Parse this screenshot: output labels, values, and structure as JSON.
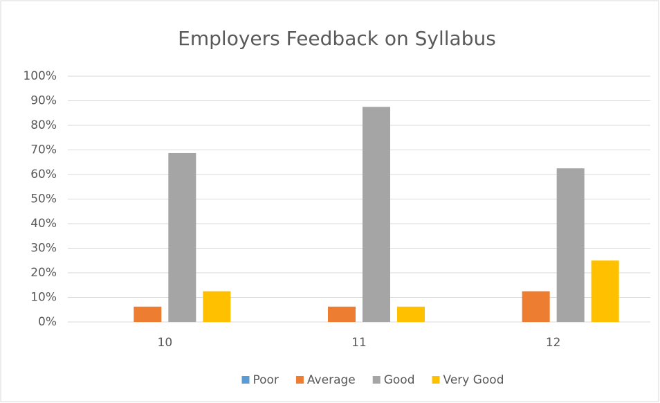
{
  "chart_data": {
    "type": "bar",
    "title": "Employers Feedback on Syllabus",
    "categories": [
      "10",
      "11",
      "12"
    ],
    "series": [
      {
        "name": "Poor",
        "color": "#5b9bd5",
        "values": [
          0,
          0,
          0
        ]
      },
      {
        "name": "Average",
        "color": "#ed7d31",
        "values": [
          6.25,
          6.25,
          12.5
        ]
      },
      {
        "name": "Good",
        "color": "#a5a5a5",
        "values": [
          68.75,
          87.5,
          62.5
        ]
      },
      {
        "name": "Very Good",
        "color": "#ffc000",
        "values": [
          12.5,
          6.25,
          25
        ]
      }
    ],
    "ylim": [
      0,
      100
    ],
    "yticks": [
      {
        "value": 0,
        "label": "0%"
      },
      {
        "value": 10,
        "label": "10%"
      },
      {
        "value": 20,
        "label": "20%"
      },
      {
        "value": 30,
        "label": "30%"
      },
      {
        "value": 40,
        "label": "40%"
      },
      {
        "value": 50,
        "label": "50%"
      },
      {
        "value": 60,
        "label": "60%"
      },
      {
        "value": 70,
        "label": "70%"
      },
      {
        "value": 80,
        "label": "80%"
      },
      {
        "value": 90,
        "label": "90%"
      },
      {
        "value": 100,
        "label": "100%"
      }
    ],
    "grid": true,
    "legend": "bottom"
  }
}
